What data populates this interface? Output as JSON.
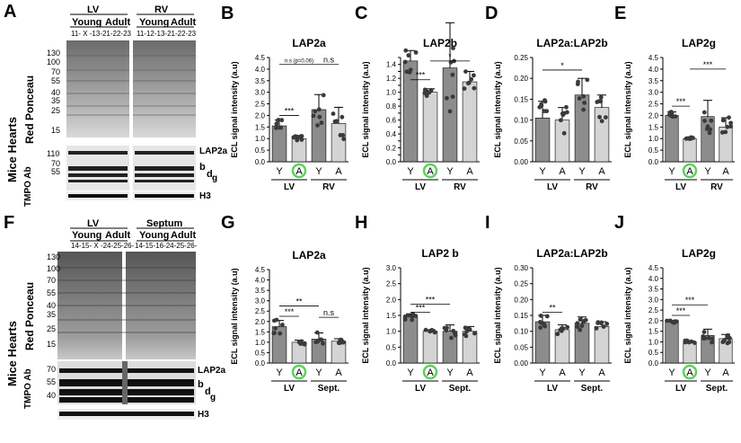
{
  "panel_letters": [
    "A",
    "B",
    "C",
    "D",
    "E",
    "F",
    "G",
    "H",
    "I",
    "J"
  ],
  "blot_top": {
    "region1": "LV",
    "region2": "RV",
    "young": "Young",
    "adult": "Adult",
    "ids1": "11- X -13-21-22-23",
    "ids2": "11-12-13-21-22-23",
    "mw": [
      "130",
      "100",
      "70",
      "55",
      "40",
      "35",
      "25",
      "15"
    ],
    "mw2": [
      "110",
      "70",
      "55"
    ],
    "ylabel_mice": "Mice Hearts",
    "ylabel_ponceau": "Red Ponceau",
    "ylabel_tmpo": "TMPO Ab",
    "bands": [
      "LAP2a",
      "b",
      "d",
      "g",
      "H3"
    ]
  },
  "blot_bottom": {
    "region1": "LV",
    "region2": "Septum",
    "young": "Young",
    "adult": "Adult",
    "ids1": "14-15- X -24-25-26-",
    "ids2": "14-15-16-24-25-26-",
    "mw": [
      "130",
      "100",
      "70",
      "55",
      "40",
      "35",
      "25",
      "15"
    ],
    "mw2": [
      "70",
      "55",
      "40"
    ],
    "ylabel_mice": "Mice Hearts",
    "ylabel_ponceau": "Red Ponceau",
    "ylabel_tmpo": "TMPO Ab",
    "bands": [
      "LAP2a",
      "b",
      "d",
      "g",
      "H3"
    ]
  },
  "chart_data": [
    {
      "id": "B",
      "type": "bar",
      "title": "LAP2a",
      "ylabel": "ECL signal intensity (a.u)",
      "ylim": [
        0,
        4.5
      ],
      "yticks": [
        "0.0",
        "0.5",
        "1.0",
        "1.5",
        "2.0",
        "2.5",
        "3.0",
        "3.5",
        "4.0",
        "4.5"
      ],
      "categories": [
        "Y",
        "A",
        "Y",
        "A"
      ],
      "groups": [
        "LV",
        "RV"
      ],
      "values": [
        1.55,
        1.0,
        2.25,
        1.65
      ],
      "errors": [
        0.25,
        0.12,
        0.65,
        0.7
      ],
      "highlight": 1,
      "sig": [
        {
          "a": 0,
          "b": 1,
          "label": "***",
          "y": 2.0
        },
        {
          "a": 0,
          "b": 2,
          "label": "n.s (p=0.06)",
          "y": 4.2
        },
        {
          "a": 2,
          "b": 3,
          "label": "n.s",
          "y": 4.2
        }
      ]
    },
    {
      "id": "C",
      "type": "bar",
      "title": "LAP2b",
      "ylabel": "ECL signal intensity (a.u)",
      "ylim": [
        0,
        1.5
      ],
      "yticks": [
        "0.0",
        "0.1",
        "0.2",
        "0.3",
        "0.4",
        "0.5",
        "0.6",
        "0.7",
        "0.8",
        "0.9",
        "1.0",
        "1.1",
        "1.2",
        "1.3",
        "1.4",
        "1.5"
      ],
      "ytick_step": 0.1,
      "ytick_show": [
        "0.0",
        "0.2",
        "0.4",
        "0.6",
        "0.8",
        "1.0",
        "1.2",
        "1.4"
      ],
      "categories": [
        "Y",
        "A",
        "Y",
        "A"
      ],
      "groups": [
        "LV",
        "RV"
      ],
      "values": [
        1.45,
        1.0,
        1.35,
        1.15
      ],
      "errors": [
        0.15,
        0.05,
        0.65,
        0.15
      ],
      "highlight": 1,
      "sig": [
        {
          "a": 0,
          "b": 1,
          "label": "***",
          "y": 1.18
        },
        {
          "a": 1,
          "b": 3,
          "label": "*",
          "y": 1.45
        }
      ]
    },
    {
      "id": "D",
      "type": "bar",
      "title": "LAP2a:LAP2b",
      "ylabel": "ECL signal intensity (a.u)",
      "ylim": [
        0,
        0.25
      ],
      "yticks": [
        "0.00",
        "0.05",
        "0.10",
        "0.15",
        "0.20",
        "0.25"
      ],
      "categories": [
        "Y",
        "A",
        "Y",
        "A"
      ],
      "groups": [
        "LV",
        "RV"
      ],
      "values": [
        0.105,
        0.1,
        0.16,
        0.13
      ],
      "errors": [
        0.04,
        0.03,
        0.04,
        0.03
      ],
      "highlight": -1,
      "sig": [
        {
          "a": 0,
          "b": 2,
          "label": "*",
          "y": 0.22
        }
      ]
    },
    {
      "id": "E",
      "type": "bar",
      "title": "LAP2g",
      "ylabel": "ECL signal intensity (a.u)",
      "ylim": [
        0,
        4.5
      ],
      "yticks": [
        "0.0",
        "0.5",
        "1.0",
        "1.5",
        "2.0",
        "2.5",
        "3.0",
        "3.5",
        "4.0",
        "4.5"
      ],
      "categories": [
        "Y",
        "A",
        "Y",
        "A"
      ],
      "groups": [
        "LV",
        "RV"
      ],
      "values": [
        2.0,
        1.0,
        1.95,
        1.5
      ],
      "errors": [
        0.15,
        0.05,
        0.7,
        0.4
      ],
      "highlight": 1,
      "sig": [
        {
          "a": 0,
          "b": 1,
          "label": "***",
          "y": 2.4
        },
        {
          "a": 1,
          "b": 3,
          "label": "***",
          "y": 4.0
        }
      ]
    },
    {
      "id": "G",
      "type": "bar",
      "title": "LAP2a",
      "ylabel": "ECL signal intensity (a.u)",
      "ylim": [
        0,
        4.5
      ],
      "yticks": [
        "0.0",
        "0.5",
        "1.0",
        "1.5",
        "2.0",
        "2.5",
        "3.0",
        "3.5",
        "4.0",
        "4.5"
      ],
      "categories": [
        "Y",
        "A",
        "Y",
        "A"
      ],
      "groups": [
        "LV",
        "Sept."
      ],
      "values": [
        1.75,
        1.0,
        1.15,
        1.05
      ],
      "errors": [
        0.3,
        0.1,
        0.3,
        0.12
      ],
      "highlight": 1,
      "sig": [
        {
          "a": 0,
          "b": 1,
          "label": "***",
          "y": 2.25
        },
        {
          "a": 0,
          "b": 2,
          "label": "**",
          "y": 2.75
        },
        {
          "a": 2,
          "b": 3,
          "label": "n.s",
          "y": 2.2
        }
      ]
    },
    {
      "id": "H",
      "type": "bar",
      "title": "LAP2 b",
      "ylabel": "ECL signal intensity (a.u)",
      "ylim": [
        0,
        3.0
      ],
      "yticks": [
        "0.0",
        "0.5",
        "1.0",
        "1.5",
        "2.0",
        "2.5",
        "3.0"
      ],
      "categories": [
        "Y",
        "A",
        "Y",
        "A"
      ],
      "groups": [
        "LV",
        "Sept."
      ],
      "values": [
        1.45,
        1.0,
        1.0,
        1.0
      ],
      "errors": [
        0.1,
        0.05,
        0.2,
        0.15
      ],
      "highlight": 1,
      "sig": [
        {
          "a": 0,
          "b": 1,
          "label": "***",
          "y": 1.6
        },
        {
          "a": 0,
          "b": 2,
          "label": "***",
          "y": 1.85
        }
      ]
    },
    {
      "id": "I",
      "type": "bar",
      "title": "LAP2a:LAP2b",
      "ylabel": "ECL signal intensity (a.u)",
      "ylim": [
        0,
        0.3
      ],
      "yticks": [
        "0.00",
        "0.05",
        "0.10",
        "0.15",
        "0.20",
        "0.25",
        "0.30"
      ],
      "categories": [
        "Y",
        "A",
        "Y",
        "A"
      ],
      "groups": [
        "LV",
        "Sept."
      ],
      "values": [
        0.13,
        0.105,
        0.125,
        0.115
      ],
      "errors": [
        0.02,
        0.015,
        0.02,
        0.015
      ],
      "highlight": -1,
      "sig": [
        {
          "a": 0,
          "b": 1,
          "label": "**",
          "y": 0.16
        }
      ]
    },
    {
      "id": "J",
      "type": "bar",
      "title": "LAP2g",
      "ylabel": "ECL signal intensity (a.u)",
      "ylim": [
        0,
        4.5
      ],
      "yticks": [
        "0.0",
        "0.5",
        "1.0",
        "1.5",
        "2.0",
        "2.5",
        "3.0",
        "3.5",
        "4.0",
        "4.5"
      ],
      "categories": [
        "Y",
        "A",
        "Y",
        "A"
      ],
      "groups": [
        "LV",
        "Sept."
      ],
      "values": [
        1.95,
        1.0,
        1.3,
        1.15
      ],
      "errors": [
        0.05,
        0.05,
        0.3,
        0.2
      ],
      "highlight": 1,
      "sig": [
        {
          "a": 0,
          "b": 1,
          "label": "***",
          "y": 2.25
        },
        {
          "a": 0,
          "b": 2,
          "label": "***",
          "y": 2.75
        }
      ]
    }
  ],
  "colors": {
    "bar_Y": "#8c8c8c",
    "bar_A": "#d4d4d4",
    "dot_Y": "#3a3a3a",
    "dot_A": "#3a3a3a",
    "highlight": "#5ad35a"
  }
}
